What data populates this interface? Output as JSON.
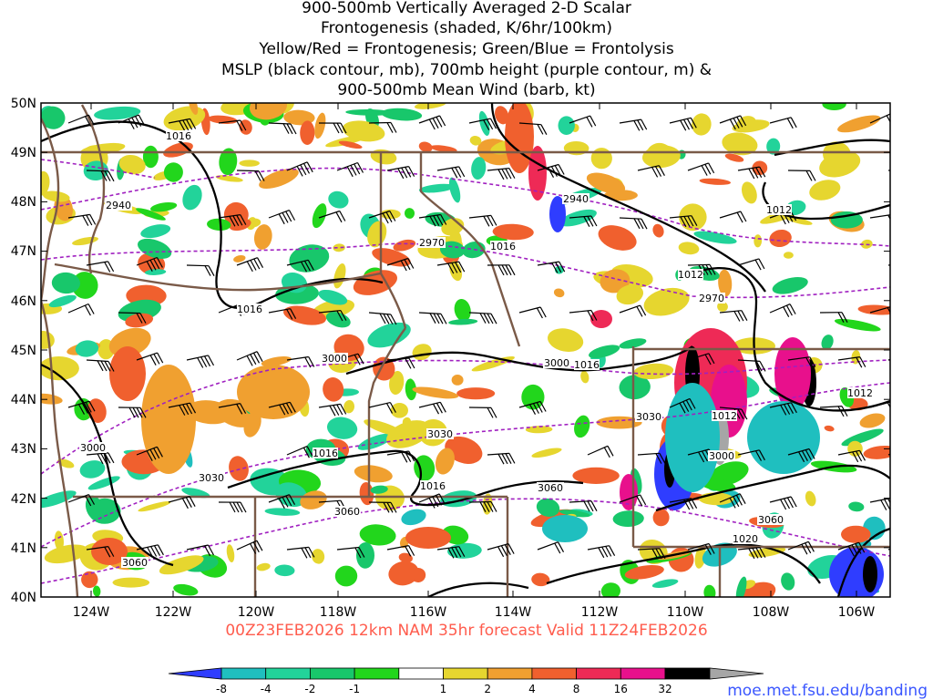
{
  "title_lines": [
    "900-500mb Vertically Averaged 2-D Scalar",
    "Frontogenesis (shaded, K/6hr/100km)",
    "Yellow/Red = Frontogenesis;  Green/Blue = Frontolysis",
    "MSLP (black contour, mb), 700mb height (purple contour, m) &",
    "900-500mb Mean Wind (barb, kt)"
  ],
  "lat_labels": [
    "50N",
    "49N",
    "48N",
    "47N",
    "46N",
    "45N",
    "44N",
    "43N",
    "42N",
    "41N",
    "40N"
  ],
  "lon_labels": [
    "124W",
    "122W",
    "120W",
    "118W",
    "116W",
    "114W",
    "112W",
    "110W",
    "108W",
    "106W"
  ],
  "valid_text": "00Z23FEB2026 12km NAM 35hr forecast Valid 11Z24FEB2026",
  "colorbar": {
    "labels": [
      "-8",
      "-4",
      "-2",
      "-1",
      "1",
      "2",
      "4",
      "8",
      "16",
      "32"
    ],
    "colors": [
      "#2f3dff",
      "#1fbfbf",
      "#22d39a",
      "#18c76b",
      "#22d61c",
      "#ffffff",
      "#e6d62f",
      "#f0a030",
      "#f0602e",
      "#ee2a56",
      "#e8108c",
      "#000000",
      "#a6a6a6"
    ]
  },
  "mslp_labels": [
    "1016",
    "1016",
    "1016",
    "1016",
    "1016",
    "1016",
    "1012",
    "1012",
    "1012",
    "1012",
    "1020"
  ],
  "height_labels": [
    "2940",
    "2940",
    "2970",
    "2970",
    "3000",
    "3000",
    "3000",
    "3000",
    "3030",
    "3030",
    "3030",
    "3060",
    "3060",
    "3060",
    "3060"
  ],
  "colors": {
    "mslp": "#000000",
    "height": "#a020c0",
    "borders": "#7a5a48",
    "frame": "#000000"
  },
  "credit": "moe.met.fsu.edu/banding"
}
